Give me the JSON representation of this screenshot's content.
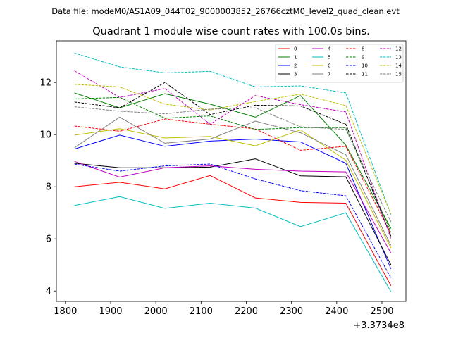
{
  "header": {
    "data_file": "Data file: modeM0/AS1A09_044T02_9000003852_26766cztM0_level2_quad_clean.evt"
  },
  "chart_data": {
    "type": "line",
    "title": "Quadrant 1 module wise count rates with 100.0s bins.",
    "xlabel": "",
    "ylabel": "",
    "x_offset_label": "+3.3734e8",
    "x": [
      1820,
      1920,
      2020,
      2120,
      2220,
      2320,
      2420,
      2520
    ],
    "xlim": [
      1780,
      2553
    ],
    "ylim": [
      3.6,
      13.6
    ],
    "xticks": [
      1800,
      1900,
      2000,
      2100,
      2200,
      2300,
      2400,
      2500
    ],
    "yticks": [
      4,
      6,
      8,
      10,
      12
    ],
    "legend_position": "top-right",
    "series": [
      {
        "name": "0",
        "color": "#ff0000",
        "style": "solid",
        "values": [
          8.0,
          8.17,
          7.92,
          8.43,
          7.57,
          7.4,
          7.37,
          4.2
        ]
      },
      {
        "name": "1",
        "color": "#008000",
        "style": "solid",
        "values": [
          11.6,
          11.03,
          11.57,
          11.17,
          10.67,
          11.5,
          9.6,
          6.4
        ]
      },
      {
        "name": "2",
        "color": "#0000ff",
        "style": "solid",
        "values": [
          9.45,
          9.98,
          9.55,
          9.75,
          9.83,
          9.72,
          8.9,
          4.85
        ]
      },
      {
        "name": "3",
        "color": "#000000",
        "style": "solid",
        "values": [
          8.9,
          8.73,
          8.73,
          8.75,
          9.07,
          8.42,
          8.38,
          5.0
        ]
      },
      {
        "name": "4",
        "color": "#bf00bf",
        "style": "solid",
        "values": [
          8.97,
          8.37,
          8.73,
          8.8,
          8.67,
          8.6,
          8.57,
          5.45
        ]
      },
      {
        "name": "5",
        "color": "#00bfbf",
        "style": "solid",
        "values": [
          7.28,
          7.62,
          7.17,
          7.37,
          7.18,
          6.47,
          7.0,
          3.97
        ]
      },
      {
        "name": "6",
        "color": "#bfbf00",
        "style": "solid",
        "values": [
          9.98,
          10.23,
          9.87,
          9.93,
          9.57,
          10.18,
          9.02,
          5.65
        ]
      },
      {
        "name": "7",
        "color": "#808080",
        "style": "solid",
        "values": [
          9.5,
          10.67,
          9.67,
          9.83,
          10.52,
          10.07,
          9.23,
          5.75
        ]
      },
      {
        "name": "8",
        "color": "#ff0000",
        "style": "dashed",
        "values": [
          10.33,
          10.13,
          10.6,
          10.4,
          10.22,
          9.4,
          9.55,
          6.2
        ]
      },
      {
        "name": "9",
        "color": "#008000",
        "style": "dashed",
        "values": [
          11.37,
          11.43,
          10.63,
          10.72,
          10.2,
          10.27,
          10.27,
          6.25
        ]
      },
      {
        "name": "10",
        "color": "#0000ff",
        "style": "dashed",
        "values": [
          8.87,
          8.6,
          8.8,
          8.87,
          8.3,
          7.85,
          7.65,
          4.5
        ]
      },
      {
        "name": "11",
        "color": "#000000",
        "style": "dashed",
        "values": [
          11.25,
          11.03,
          12.0,
          10.77,
          11.13,
          11.1,
          10.4,
          6.1
        ]
      },
      {
        "name": "12",
        "color": "#bf00bf",
        "style": "dashed",
        "values": [
          12.45,
          11.43,
          11.77,
          10.4,
          11.5,
          11.15,
          10.87,
          6.0
        ]
      },
      {
        "name": "13",
        "color": "#00bfbf",
        "style": "dashed",
        "values": [
          13.13,
          12.6,
          12.37,
          12.43,
          11.83,
          11.87,
          11.6,
          6.93
        ]
      },
      {
        "name": "14",
        "color": "#bfbf00",
        "style": "dashed",
        "values": [
          11.93,
          11.83,
          11.17,
          10.95,
          11.27,
          11.55,
          11.12,
          6.95
        ]
      },
      {
        "name": "15",
        "color": "#808080",
        "style": "dashed",
        "values": [
          11.07,
          10.9,
          10.8,
          10.98,
          11.03,
          10.3,
          10.2,
          6.65
        ]
      }
    ]
  }
}
